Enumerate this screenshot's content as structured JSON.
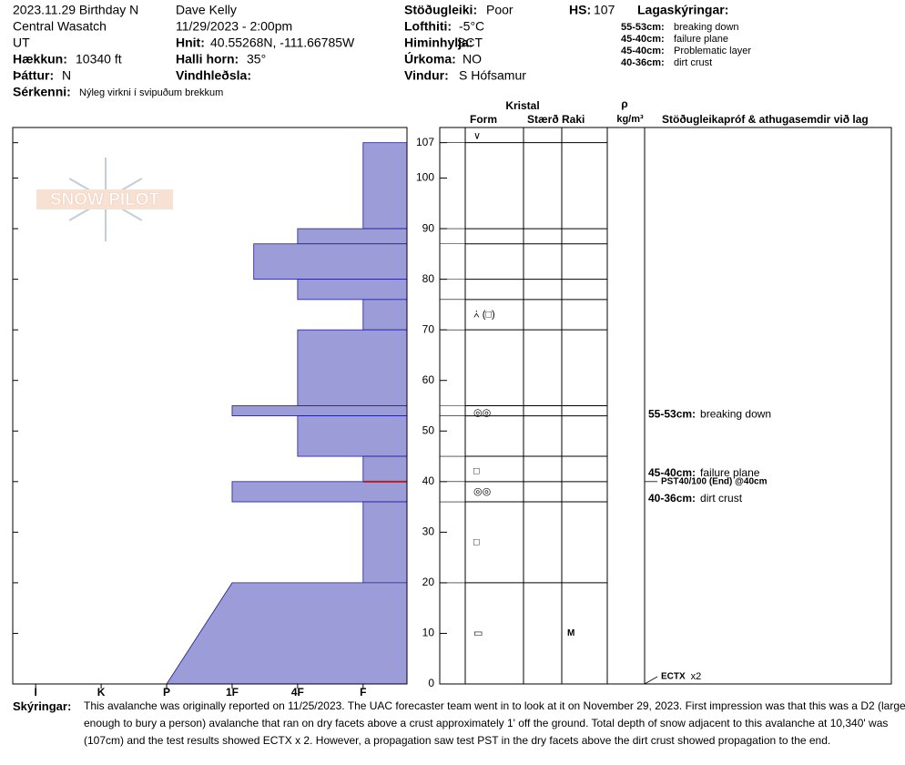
{
  "header": {
    "fields": [
      {
        "value": "2023.11.29 Birthday N"
      },
      {
        "value": "Central Wasatch"
      },
      {
        "value": "UT"
      },
      {
        "label": "Hækkun:",
        "value": "10340 ft"
      },
      {
        "label": "Þáttur:",
        "value": "N"
      },
      {
        "label": "Sérkenni:",
        "value": "Nýleg virkni í svipuðum brekkum"
      },
      {
        "value": "Dave Kelly"
      },
      {
        "value": "11/29/2023 - 2:00pm"
      },
      {
        "label": "Hnit:",
        "value": "40.55268N, -111.66785W"
      },
      {
        "label": "Halli horn:",
        "value": "35°"
      },
      {
        "label": "Vindhleðsla:"
      },
      {
        "label": "Stöðugleiki:",
        "value": "Poor"
      },
      {
        "label": "Lofthiti:",
        "value": "-5°C"
      },
      {
        "label": "Himinhylja:",
        "value": "SCT"
      },
      {
        "label": "Úrkoma:",
        "value": "NO"
      },
      {
        "label": "Vindur:",
        "value": "S Hófsamur"
      },
      {
        "label": "HS:",
        "value": 107
      }
    ]
  },
  "legend": {
    "title": "Lagaskýringar:",
    "entries": [
      {
        "label": "55-53cm:",
        "text": "breaking down"
      },
      {
        "label": "45-40cm:",
        "text": "failure plane"
      },
      {
        "label": "45-40cm:",
        "text": "Problematic layer"
      },
      {
        "label": "40-36cm:",
        "text": "dirt crust"
      }
    ]
  },
  "logo": "SNOW PILOT",
  "columns": {
    "group": "Kristal",
    "form": "Form",
    "size": "Stærð",
    "moisture": "Raki",
    "density_symbol": "ρ",
    "density_unit": "kg/m³",
    "tests": "Stöðugleikapróf & athugasemdir við lag"
  },
  "chart_data": {
    "type": "bar",
    "orientation": "horizontal",
    "layers": [
      {
        "top": 107,
        "bottom": 90,
        "hardness": 1
      },
      {
        "top": 90,
        "bottom": 87,
        "hardness": 2
      },
      {
        "top": 87,
        "bottom": 80,
        "hardness": 2.67
      },
      {
        "top": 80,
        "bottom": 76,
        "hardness": 2
      },
      {
        "top": 76,
        "bottom": 70,
        "hardness": 1
      },
      {
        "top": 70,
        "bottom": 55,
        "hardness": 2
      },
      {
        "top": 55,
        "bottom": 53,
        "hardness": 3
      },
      {
        "top": 53,
        "bottom": 45,
        "hardness": 2
      },
      {
        "top": 45,
        "bottom": 40,
        "hardness": 1
      },
      {
        "top": 40,
        "bottom": 36,
        "hardness": 3
      },
      {
        "top": 36,
        "bottom": 20,
        "hardness": 1
      },
      {
        "top": 20,
        "bottom": 0,
        "hardness": 3,
        "hardness_bottom": 4
      }
    ],
    "color": "#9c9cd8",
    "edge_color": "#1c1c9c",
    "failure_depth": 40,
    "failure_color": "#b22222",
    "ylim": [
      0,
      110
    ],
    "yticks": [
      0,
      10,
      20,
      30,
      40,
      50,
      60,
      70,
      80,
      90,
      100,
      107
    ],
    "xlim": [
      6.35,
      0.33
    ],
    "xticks": [
      {
        "value": 6,
        "label": "I"
      },
      {
        "value": 5,
        "label": "K"
      },
      {
        "value": 4,
        "label": "P"
      },
      {
        "value": 3,
        "label": "1F"
      },
      {
        "value": 2,
        "label": "4F"
      },
      {
        "value": 1,
        "label": "F"
      }
    ]
  },
  "grains": [
    {
      "depth": 108.3,
      "form": "∨"
    },
    {
      "depth": 73,
      "form": "⩑ (□)"
    },
    {
      "depth": 53.5,
      "form": "◎◎"
    },
    {
      "depth": 42,
      "form": "□"
    },
    {
      "depth": 38,
      "form": "◎◎"
    },
    {
      "depth": 28,
      "form": "□"
    },
    {
      "depth": 10,
      "form": "▭"
    }
  ],
  "moisture": [
    {
      "depth": 10,
      "text": "M"
    }
  ],
  "layer_comments": [
    {
      "depth": 53.2,
      "label": "55-53cm:",
      "text": "breaking down"
    },
    {
      "depth": 41.6,
      "label": "45-40cm:",
      "text": "failure plane"
    },
    {
      "depth": 36.6,
      "label": "40-36cm:",
      "text": "dirt crust"
    }
  ],
  "tests": [
    {
      "depth": 40,
      "text": "PST40/100 (End) @40cm"
    },
    {
      "depth": 0,
      "text": "ECTX",
      "count": "x2"
    }
  ],
  "comments": {
    "label": "Skýringar:",
    "text": "This avalanche was originally reported on 11/25/2023. The UAC forecaster team went in to look at it on November 29, 2023. First impression was that this was a D2 (large enough to bury a person) avalanche that ran on dry facets above a crust approximately 1' off the ground. Total depth of snow adjacent to this avalanche at 10,340' was (107cm) and the test results showed ECTX x 2. However, a propagation saw test PST in the dry facets above the dirt crust showed propagation to the end."
  }
}
